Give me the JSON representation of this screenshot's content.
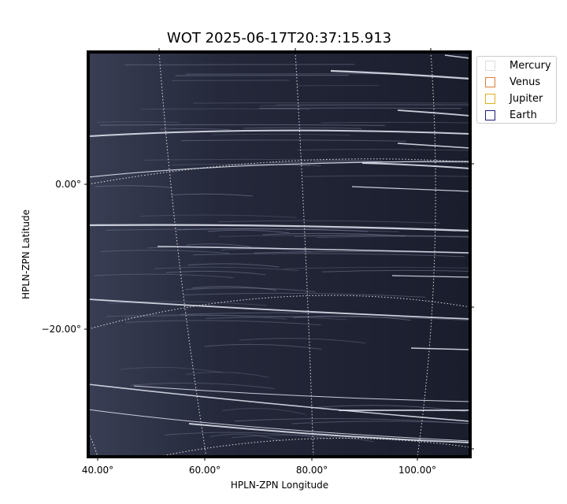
{
  "chart_data": {
    "type": "image",
    "title": "WOT 2025-06-17T20:37:15.913",
    "xlabel": "HPLN-ZPN Longitude",
    "ylabel": "HPLN-ZPN Latitude",
    "x_ticks": [
      "40.00°",
      "60.00°",
      "80.00°",
      "100.00°"
    ],
    "y_ticks": [
      "0.00°",
      "−20.00°"
    ],
    "grid": "dotted white coordinate grid",
    "legend_position": "outside top-right",
    "legend": [
      {
        "name": "Mercury",
        "color": "#dddddd"
      },
      {
        "name": "Venus",
        "color": "#e07b39"
      },
      {
        "name": "Jupiter",
        "color": "#e0b020"
      },
      {
        "name": "Earth",
        "color": "#1a1a7a"
      }
    ]
  }
}
